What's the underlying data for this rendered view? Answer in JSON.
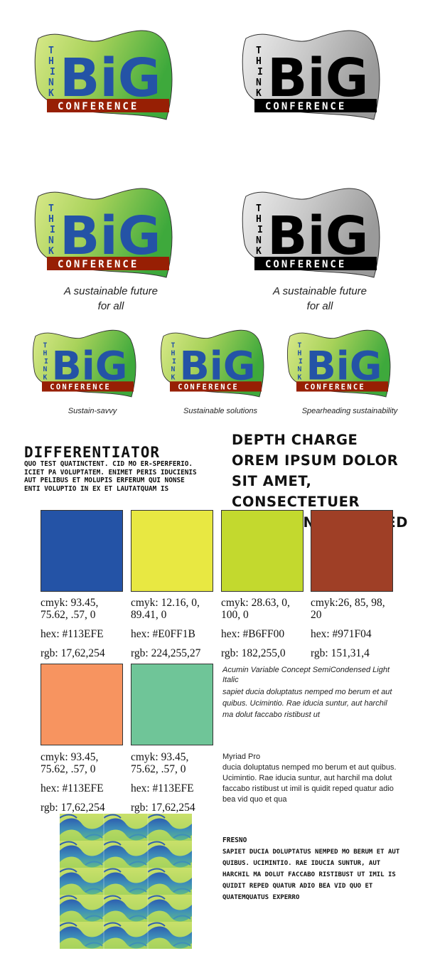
{
  "logo": {
    "think": [
      "T",
      "H",
      "I",
      "N",
      "K"
    ],
    "big": "BiG",
    "conference": "CONFERENCE"
  },
  "colors": {
    "blue": "#2453A6",
    "yellow": "#E8E842",
    "lime": "#C3D92E",
    "brown": "#9F3F26",
    "orange": "#F79460",
    "teal": "#6FC598",
    "green_swoosh": "#5DB848",
    "red_band": "#971F04"
  },
  "taglines": {
    "large_color": "A sustainable future",
    "large_color_2": "for all",
    "large_bw": "A sustainable future",
    "large_bw_2": "for all",
    "small_1": "Sustain-savvy",
    "small_2": "Sustainable solutions",
    "small_3": "Spearheading sustainability"
  },
  "type": {
    "differentiator_title": "DIFFERENTIATOR",
    "differentiator_body": "QUO TEST QUATINCTENT. CID MO ER-SPERFERIO. ICIET PA VOLUPTATEM. ENIMET PERIS IDUCIENIS AUT PELIBUS ET MOLUPIS ERFERUM QUI NONSE ENTI VOLUPTIO IN EX ET LAUTATQUAM IS",
    "depth_title": "DEPTH CHARGE",
    "depth_body": "OREM IPSUM DOLOR SIT AMET, CONSECTETUER ADIPISCING ELIT, SED"
  },
  "swatches": [
    {
      "cmyk": "cmyk: 93.45, 75.62, .57, 0",
      "hex": "hex: #113EFE",
      "rgb": "rgb: 17,62,254"
    },
    {
      "cmyk": "cmyk: 12.16, 0, 89.41, 0",
      "hex": "hex: #E0FF1B",
      "rgb": "rgb: 224,255,27"
    },
    {
      "cmyk": "cmyk: 28.63, 0, 100, 0",
      "hex": "hex: #B6FF00",
      "rgb": "rgb: 182,255,0"
    },
    {
      "cmyk": "cmyk:26, 85, 98, 20",
      "hex": "hex: #971F04",
      "rgb": "rgb: 151,31,4"
    },
    {
      "cmyk": "cmyk: 93.45, 75.62, .57, 0",
      "hex": "hex: #113EFE",
      "rgb": "rgb: 17,62,254"
    },
    {
      "cmyk": "cmyk: 93.45, 75.62, .57, 0",
      "hex": "hex: #113EFE",
      "rgb": "rgb: 17,62,254"
    }
  ],
  "fonts": {
    "acumin_title": "Acumin Variable Concept SemiCondensed Light Italic",
    "acumin_body": "sapiet ducia doluptatus nemped mo berum et aut quibus. Ucimintio. Rae iducia suntur, aut harchil ma dolut faccabo ristibust ut",
    "myriad_title": "Myriad Pro",
    "myriad_body": "ducia doluptatus nemped mo berum et aut quibus. Ucimintio. Rae iducia suntur, aut harchil ma dolut faccabo ristibust ut imil is quidit reped quatur adio bea vid quo et qua",
    "fresno_title": "FRESNO",
    "fresno_body": "SAPIET DUCIA DOLUPTATUS NEMPED MO BERUM ET AUT QUIBUS. UCIMINTIO. RAE IDUCIA SUNTUR, AUT HARCHIL MA DOLUT FACCABO RISTIBUST UT IMIL IS QUIDIT REPED QUATUR ADIO BEA VID QUO ET QUATEMQUATUS EXPERRO"
  }
}
